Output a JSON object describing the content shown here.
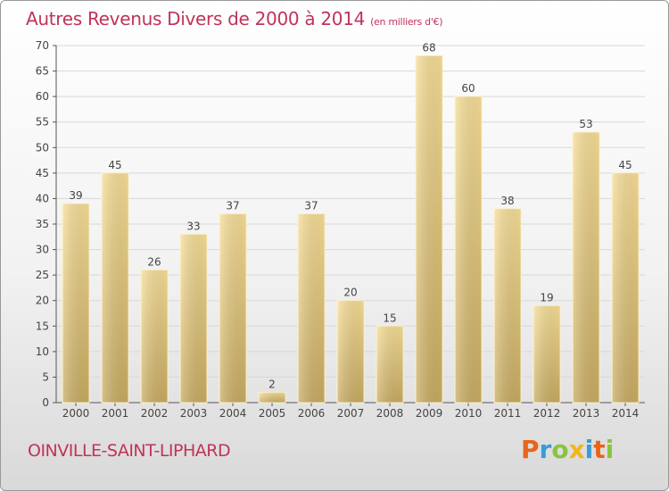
{
  "header": {
    "title": "Autres Revenus Divers de 2000 à 2014",
    "unit": "(en milliers d'€)"
  },
  "footer": {
    "commune": "OINVILLE-SAINT-LIPHARD",
    "logo_text": "Proxiti",
    "logo_colors": [
      "#e8651a",
      "#3b9bd6",
      "#8ac43f",
      "#f2b61b",
      "#3b9bd6",
      "#e8651a",
      "#8ac43f"
    ]
  },
  "chart_data": {
    "type": "bar",
    "title": "Autres Revenus Divers de 2000 à 2014",
    "categories": [
      "2000",
      "2001",
      "2002",
      "2003",
      "2004",
      "2005",
      "2006",
      "2007",
      "2008",
      "2009",
      "2010",
      "2011",
      "2012",
      "2013",
      "2014"
    ],
    "values": [
      39,
      45,
      26,
      33,
      37,
      2,
      37,
      20,
      15,
      68,
      60,
      38,
      19,
      53,
      45
    ],
    "ylim": [
      0,
      70
    ],
    "yticks": [
      0,
      5,
      10,
      15,
      20,
      25,
      30,
      35,
      40,
      45,
      50,
      55,
      60,
      65,
      70
    ],
    "grid": true,
    "bar_color": "#e8c97a",
    "grid_color": "#d8d8d8"
  }
}
